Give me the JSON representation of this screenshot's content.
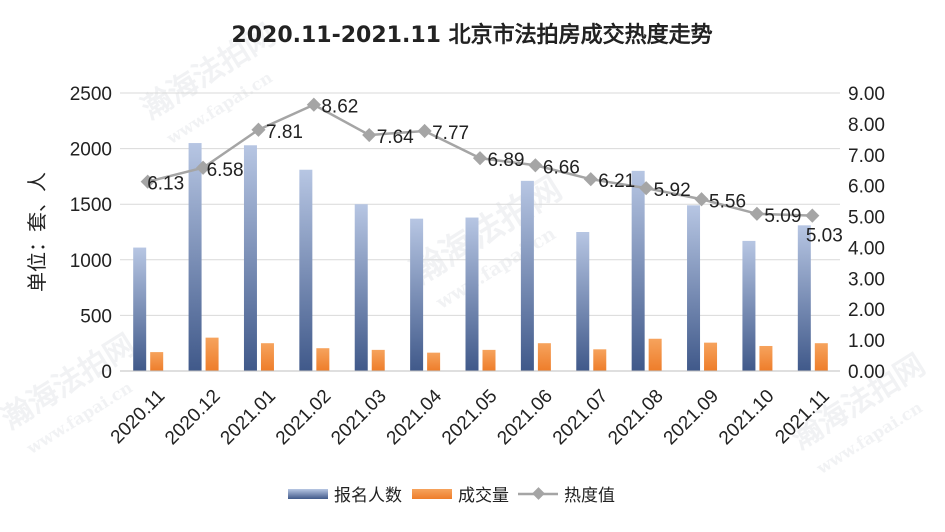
{
  "chart_data": {
    "type": "bar",
    "title": "2020.11-2021.11 北京市法拍房成交热度走势",
    "ylabel": "单位：套、人",
    "categories": [
      "2020.11",
      "2020.12",
      "2021.01",
      "2021.02",
      "2021.03",
      "2021.04",
      "2021.05",
      "2021.06",
      "2021.07",
      "2021.08",
      "2021.09",
      "2021.10",
      "2021.11"
    ],
    "series": [
      {
        "name": "报名人数",
        "type": "bar",
        "axis": "left",
        "color": "#4a6394",
        "values": [
          1110,
          2050,
          2030,
          1810,
          1500,
          1370,
          1380,
          1710,
          1250,
          1800,
          1490,
          1170,
          1310
        ]
      },
      {
        "name": "成交量",
        "type": "bar",
        "axis": "left",
        "color": "#f08a3c",
        "values": [
          170,
          300,
          250,
          205,
          190,
          165,
          190,
          250,
          195,
          290,
          255,
          225,
          250
        ]
      },
      {
        "name": "热度值",
        "type": "line",
        "axis": "right",
        "color": "#a5a5a5",
        "values": [
          6.13,
          6.58,
          7.81,
          8.62,
          7.64,
          7.77,
          6.89,
          6.66,
          6.21,
          5.92,
          5.56,
          5.09,
          5.03
        ]
      }
    ],
    "y_left": {
      "min": 0,
      "max": 2500,
      "ticks": [
        "0",
        "500",
        "1000",
        "1500",
        "2000",
        "2500"
      ]
    },
    "y_right": {
      "min": 0,
      "max": 9,
      "ticks": [
        "0.00",
        "1.00",
        "2.00",
        "3.00",
        "4.00",
        "5.00",
        "6.00",
        "7.00",
        "8.00",
        "9.00"
      ]
    },
    "grid": true,
    "legend_position": "bottom"
  },
  "watermarks": [
    "瀚海法拍网",
    "www.fapai.cn"
  ]
}
